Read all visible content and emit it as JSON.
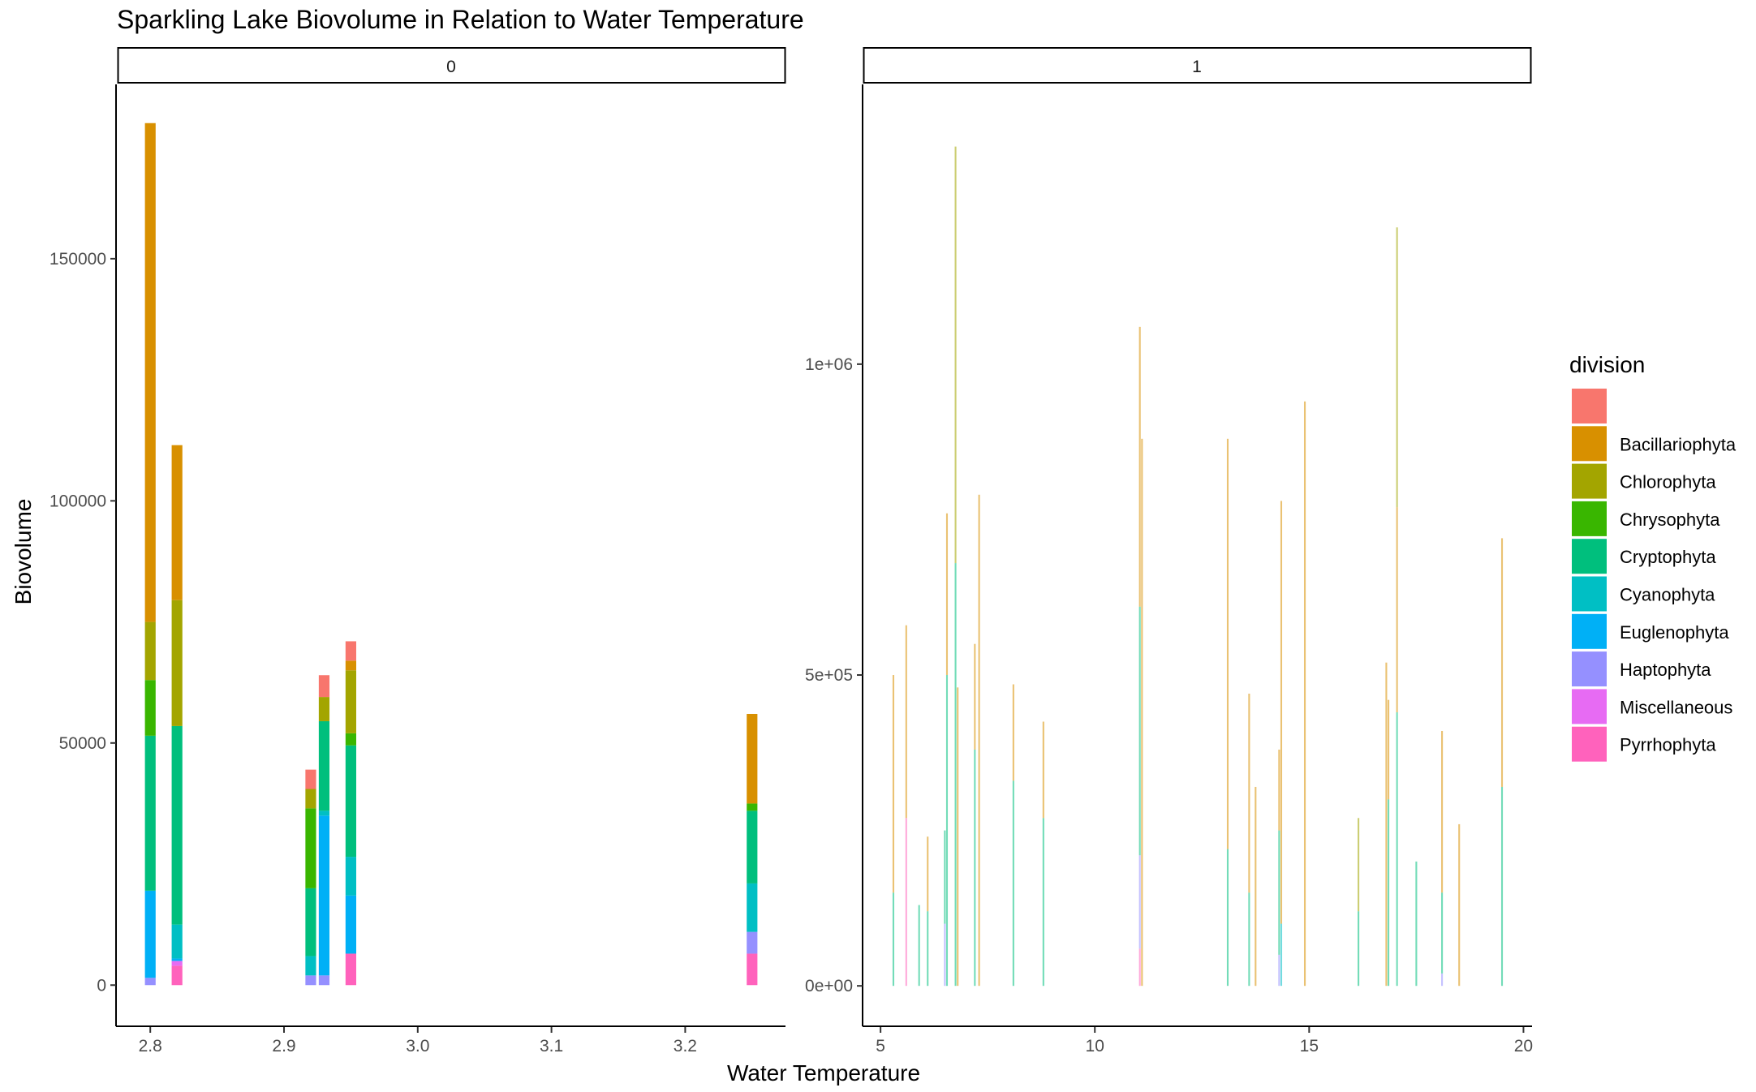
{
  "chart_data": {
    "type": "bar",
    "title": "Sparkling Lake Biovolume in Relation to Water Temperature",
    "xlabel": "Water Temperature",
    "ylabel": "Biovolume",
    "legend": {
      "title": "division",
      "placement": "right",
      "entries": [
        {
          "name": "",
          "color": "#F8766D"
        },
        {
          "name": "Bacillariophyta",
          "color": "#D89000"
        },
        {
          "name": "Chlorophyta",
          "color": "#A3A500"
        },
        {
          "name": "Chrysophyta",
          "color": "#39B600"
        },
        {
          "name": "Cryptophyta",
          "color": "#00BF7D"
        },
        {
          "name": "Cyanophyta",
          "color": "#00BFC4"
        },
        {
          "name": "Euglenophyta",
          "color": "#00B0F6"
        },
        {
          "name": "Haptophyta",
          "color": "#9590FF"
        },
        {
          "name": "Miscellaneous",
          "color": "#E76BF3"
        },
        {
          "name": "Pyrrhophyta",
          "color": "#FF62BC"
        }
      ]
    },
    "panels": [
      {
        "label": "0",
        "xlim": [
          2.775,
          3.275
        ],
        "ylim": [
          -8500,
          186000
        ],
        "xticks": [
          {
            "v": 2.8,
            "label": "2.8"
          },
          {
            "v": 2.9,
            "label": "2.9"
          },
          {
            "v": 3.0,
            "label": "3.0"
          },
          {
            "v": 3.1,
            "label": "3.1"
          },
          {
            "v": 3.2,
            "label": "3.2"
          }
        ],
        "yticks": [
          {
            "v": 0,
            "label": "0"
          },
          {
            "v": 50000,
            "label": "50000"
          },
          {
            "v": 100000,
            "label": "100000"
          },
          {
            "v": 150000,
            "label": "150000"
          }
        ],
        "bar_width": 0.008,
        "bars": [
          {
            "x": 2.8,
            "stack": [
              [
                "Haptophyta",
                1500
              ],
              [
                "Euglenophyta",
                18000
              ],
              [
                "Cryptophyta",
                32000
              ],
              [
                "Chrysophyta",
                11500
              ],
              [
                "Chlorophyta",
                12000
              ],
              [
                "Bacillariophyta",
                103000
              ]
            ]
          },
          {
            "x": 2.82,
            "stack": [
              [
                "Pyrrhophyta",
                4000
              ],
              [
                "Miscellaneous",
                1000
              ],
              [
                "Euglenophyta",
                500
              ],
              [
                "Cyanophyta",
                7000
              ],
              [
                "Cryptophyta",
                41000
              ],
              [
                "Chlorophyta",
                26000
              ],
              [
                "Bacillariophyta",
                32000
              ]
            ]
          },
          {
            "x": 2.92,
            "stack": [
              [
                "Haptophyta",
                2000
              ],
              [
                "Cyanophyta",
                4000
              ],
              [
                "Cryptophyta",
                14000
              ],
              [
                "Chrysophyta",
                16500
              ],
              [
                "Chlorophyta",
                4000
              ],
              [
                "",
                4000
              ]
            ]
          },
          {
            "x": 2.93,
            "stack": [
              [
                "Haptophyta",
                2000
              ],
              [
                "Euglenophyta",
                33000
              ],
              [
                "Cyanophyta",
                1000
              ],
              [
                "Cryptophyta",
                18500
              ],
              [
                "Chlorophyta",
                5000
              ],
              [
                "",
                4500
              ]
            ]
          },
          {
            "x": 2.95,
            "stack": [
              [
                "Pyrrhophyta",
                6500
              ],
              [
                "Euglenophyta",
                12000
              ],
              [
                "Cyanophyta",
                8000
              ],
              [
                "Cryptophyta",
                23000
              ],
              [
                "Chrysophyta",
                2500
              ],
              [
                "Chlorophyta",
                13000
              ],
              [
                "Bacillariophyta",
                2000
              ],
              [
                "",
                4000
              ]
            ]
          },
          {
            "x": 3.25,
            "stack": [
              [
                "Pyrrhophyta",
                6500
              ],
              [
                "Haptophyta",
                4500
              ],
              [
                "Cyanophyta",
                10000
              ],
              [
                "Cryptophyta",
                15000
              ],
              [
                "Chrysophyta",
                1500
              ],
              [
                "Bacillariophyta",
                18500
              ]
            ]
          }
        ]
      },
      {
        "label": "1",
        "xlim": [
          4.6,
          20.2
        ],
        "ylim": [
          -65000,
          1450000
        ],
        "xticks": [
          {
            "v": 5,
            "label": "5"
          },
          {
            "v": 10,
            "label": "10"
          },
          {
            "v": 15,
            "label": "15"
          },
          {
            "v": 20,
            "label": "20"
          }
        ],
        "yticks": [
          {
            "v": 0,
            "label": "0e+00"
          },
          {
            "v": 500000,
            "label": "5e+05"
          },
          {
            "v": 1000000,
            "label": "1e+06"
          }
        ],
        "bar_width": 0.04,
        "bar_opacity": 0.55,
        "bars": [
          {
            "x": 5.3,
            "stack": [
              [
                "Cryptophyta",
                150000
              ],
              [
                "Bacillariophyta",
                350000
              ]
            ]
          },
          {
            "x": 5.6,
            "stack": [
              [
                "Pyrrhophyta",
                270000
              ],
              [
                "Bacillariophyta",
                310000
              ]
            ]
          },
          {
            "x": 5.9,
            "stack": [
              [
                "Cryptophyta",
                130000
              ]
            ]
          },
          {
            "x": 6.1,
            "stack": [
              [
                "Cryptophyta",
                120000
              ],
              [
                "Bacillariophyta",
                120000
              ]
            ]
          },
          {
            "x": 6.5,
            "stack": [
              [
                "Haptophyta",
                100000
              ],
              [
                "Cryptophyta",
                150000
              ]
            ]
          },
          {
            "x": 6.55,
            "stack": [
              [
                "Cryptophyta",
                500000
              ],
              [
                "Bacillariophyta",
                260000
              ]
            ]
          },
          {
            "x": 6.75,
            "stack": [
              [
                "Cryptophyta",
                680000
              ],
              [
                "Chlorophyta",
                670000
              ]
            ]
          },
          {
            "x": 6.8,
            "stack": [
              [
                "Bacillariophyta",
                480000
              ]
            ]
          },
          {
            "x": 7.2,
            "stack": [
              [
                "Cryptophyta",
                380000
              ],
              [
                "Bacillariophyta",
                170000
              ]
            ]
          },
          {
            "x": 7.3,
            "stack": [
              [
                "Bacillariophyta",
                790000
              ]
            ]
          },
          {
            "x": 8.1,
            "stack": [
              [
                "Cryptophyta",
                330000
              ],
              [
                "Bacillariophyta",
                155000
              ]
            ]
          },
          {
            "x": 8.8,
            "stack": [
              [
                "Cryptophyta",
                270000
              ],
              [
                "Bacillariophyta",
                155000
              ]
            ]
          },
          {
            "x": 11.05,
            "stack": [
              [
                "Pyrrhophyta",
                60000
              ],
              [
                "Haptophyta",
                150000
              ],
              [
                "Cryptophyta",
                400000
              ],
              [
                "Bacillariophyta",
                450000
              ]
            ]
          },
          {
            "x": 11.1,
            "stack": [
              [
                "Bacillariophyta",
                880000
              ]
            ]
          },
          {
            "x": 13.1,
            "stack": [
              [
                "Cryptophyta",
                220000
              ],
              [
                "Bacillariophyta",
                660000
              ]
            ]
          },
          {
            "x": 13.6,
            "stack": [
              [
                "Cryptophyta",
                150000
              ],
              [
                "Bacillariophyta",
                320000
              ]
            ]
          },
          {
            "x": 13.75,
            "stack": [
              [
                "Bacillariophyta",
                320000
              ]
            ]
          },
          {
            "x": 14.3,
            "stack": [
              [
                "Haptophyta",
                50000
              ],
              [
                "Cryptophyta",
                200000
              ],
              [
                "Bacillariophyta",
                130000
              ]
            ]
          },
          {
            "x": 14.35,
            "stack": [
              [
                "Cyanophyta",
                100000
              ],
              [
                "Bacillariophyta",
                680000
              ]
            ]
          },
          {
            "x": 14.9,
            "stack": [
              [
                "Bacillariophyta",
                940000
              ]
            ]
          },
          {
            "x": 16.15,
            "stack": [
              [
                "Cryptophyta",
                120000
              ],
              [
                "Chlorophyta",
                150000
              ]
            ]
          },
          {
            "x": 16.8,
            "stack": [
              [
                "Bacillariophyta",
                520000
              ]
            ]
          },
          {
            "x": 16.85,
            "stack": [
              [
                "Cryptophyta",
                300000
              ],
              [
                "Bacillariophyta",
                160000
              ]
            ]
          },
          {
            "x": 17.05,
            "stack": [
              [
                "Cryptophyta",
                440000
              ],
              [
                "Bacillariophyta",
                330000
              ],
              [
                "Chlorophyta",
                450000
              ]
            ]
          },
          {
            "x": 17.5,
            "stack": [
              [
                "Cryptophyta",
                200000
              ]
            ]
          },
          {
            "x": 18.1,
            "stack": [
              [
                "Haptophyta",
                20000
              ],
              [
                "Cryptophyta",
                130000
              ],
              [
                "Bacillariophyta",
                260000
              ]
            ]
          },
          {
            "x": 18.5,
            "stack": [
              [
                "Bacillariophyta",
                260000
              ]
            ]
          },
          {
            "x": 19.5,
            "stack": [
              [
                "Cryptophyta",
                320000
              ],
              [
                "Bacillariophyta",
                400000
              ]
            ]
          }
        ]
      }
    ]
  }
}
